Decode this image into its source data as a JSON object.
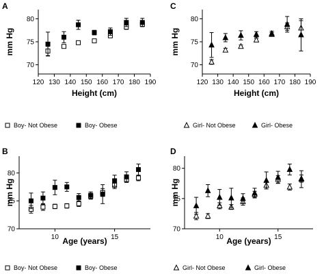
{
  "chart_data": [
    {
      "panel": "A",
      "type": "scatter",
      "xlabel": "Height (cm)",
      "ylabel": "mm Hg",
      "xlim": [
        120,
        190
      ],
      "ylim": [
        68,
        82
      ],
      "xticks": [
        120,
        130,
        140,
        150,
        160,
        170,
        180,
        190
      ],
      "yticks": [
        70,
        75,
        80
      ],
      "series": [
        {
          "name": "Boy- Not Obese",
          "marker": "open-square",
          "x": [
            126,
            136,
            145,
            155,
            165,
            175,
            185
          ],
          "y": [
            73.0,
            74.0,
            74.8,
            75.2,
            76.3,
            78.2,
            78.8
          ],
          "err": [
            1.0,
            0.4,
            0.3,
            0.4,
            0.4,
            0.5,
            0.5
          ]
        },
        {
          "name": "Boy- Obese",
          "marker": "filled-square",
          "x": [
            126,
            136,
            145,
            155,
            165,
            175,
            185
          ],
          "y": [
            74.5,
            76.0,
            78.7,
            77.0,
            77.2,
            79.2,
            79.2
          ],
          "err": [
            2.6,
            1.2,
            1.0,
            0.5,
            0.8,
            0.9,
            0.9
          ]
        }
      ]
    },
    {
      "panel": "C",
      "type": "scatter",
      "xlabel": "Height (cm)",
      "ylabel": "mm Hg",
      "xlim": [
        120,
        190
      ],
      "ylim": [
        68,
        82
      ],
      "xticks": [
        120,
        130,
        140,
        150,
        160,
        170,
        180,
        190
      ],
      "yticks": [
        70,
        75,
        80
      ],
      "series": [
        {
          "name": "Girl- Not Obese",
          "marker": "open-triangle",
          "x": [
            126,
            135,
            145,
            155,
            165,
            175,
            184
          ],
          "y": [
            70.6,
            73.2,
            74.0,
            75.4,
            76.6,
            78.3,
            78.0
          ],
          "err": [
            0.5,
            0.4,
            0.3,
            0.3,
            0.4,
            0.8,
            1.6
          ]
        },
        {
          "name": "Girl- Obese",
          "marker": "filled-triangle",
          "x": [
            126,
            135,
            145,
            155,
            165,
            175,
            184
          ],
          "y": [
            74.3,
            75.9,
            76.4,
            76.6,
            76.8,
            78.8,
            76.5
          ],
          "err": [
            2.7,
            0.9,
            1.0,
            0.6,
            0.5,
            1.7,
            3.5
          ]
        }
      ]
    },
    {
      "panel": "B",
      "type": "scatter",
      "xlabel": "Age (years)",
      "ylabel": "mm Hg",
      "xlim": [
        7,
        18
      ],
      "ylim": [
        70,
        83
      ],
      "xticks": [
        10,
        15
      ],
      "yticks": [
        70,
        75,
        80
      ],
      "series": [
        {
          "name": "Boy- Not Obese",
          "marker": "open-square",
          "x": [
            8,
            9,
            10,
            11,
            12,
            13,
            14,
            15,
            16,
            17
          ],
          "y": [
            73.5,
            73.9,
            74.0,
            74.1,
            74.5,
            75.8,
            76.5,
            77.8,
            78.8,
            79.1
          ],
          "err": [
            0.7,
            0.6,
            0.4,
            0.4,
            0.5,
            0.5,
            0.7,
            0.6,
            0.5,
            0.5
          ]
        },
        {
          "name": "Boy- Obese",
          "marker": "filled-square",
          "x": [
            8,
            9,
            10,
            11,
            12,
            13,
            14,
            15,
            16,
            17
          ],
          "y": [
            75.0,
            75.5,
            77.4,
            77.5,
            75.6,
            76.0,
            76.2,
            78.6,
            79.3,
            80.6
          ],
          "err": [
            1.4,
            1.1,
            1.3,
            0.8,
            0.7,
            0.6,
            1.7,
            1.0,
            0.9,
            1.0
          ]
        }
      ]
    },
    {
      "panel": "D",
      "type": "scatter",
      "xlabel": "Age (years)",
      "ylabel": "mm Hg",
      "xlim": [
        7,
        18
      ],
      "ylim": [
        70,
        82
      ],
      "xticks": [
        10,
        15
      ],
      "yticks": [
        70,
        75,
        80
      ],
      "series": [
        {
          "name": "Girl- Not Obese",
          "marker": "open-triangle",
          "x": [
            8,
            9,
            10,
            11,
            12,
            13,
            14,
            15,
            16,
            17
          ],
          "y": [
            72.1,
            72.1,
            73.8,
            73.6,
            74.5,
            75.7,
            77.2,
            78.2,
            76.9,
            78.3
          ],
          "err": [
            0.6,
            0.4,
            0.5,
            0.4,
            0.6,
            0.5,
            0.6,
            0.6,
            0.5,
            0.6
          ]
        },
        {
          "name": "Girl- Obese",
          "marker": "filled-triangle",
          "x": [
            8,
            9,
            10,
            11,
            12,
            13,
            14,
            15,
            16,
            17
          ],
          "y": [
            73.8,
            76.3,
            75.2,
            75.1,
            75.0,
            75.9,
            78.0,
            78.5,
            79.8,
            78.2
          ],
          "err": [
            1.4,
            1.0,
            1.3,
            1.6,
            0.8,
            0.8,
            1.4,
            1.0,
            0.9,
            1.4
          ]
        }
      ]
    }
  ]
}
